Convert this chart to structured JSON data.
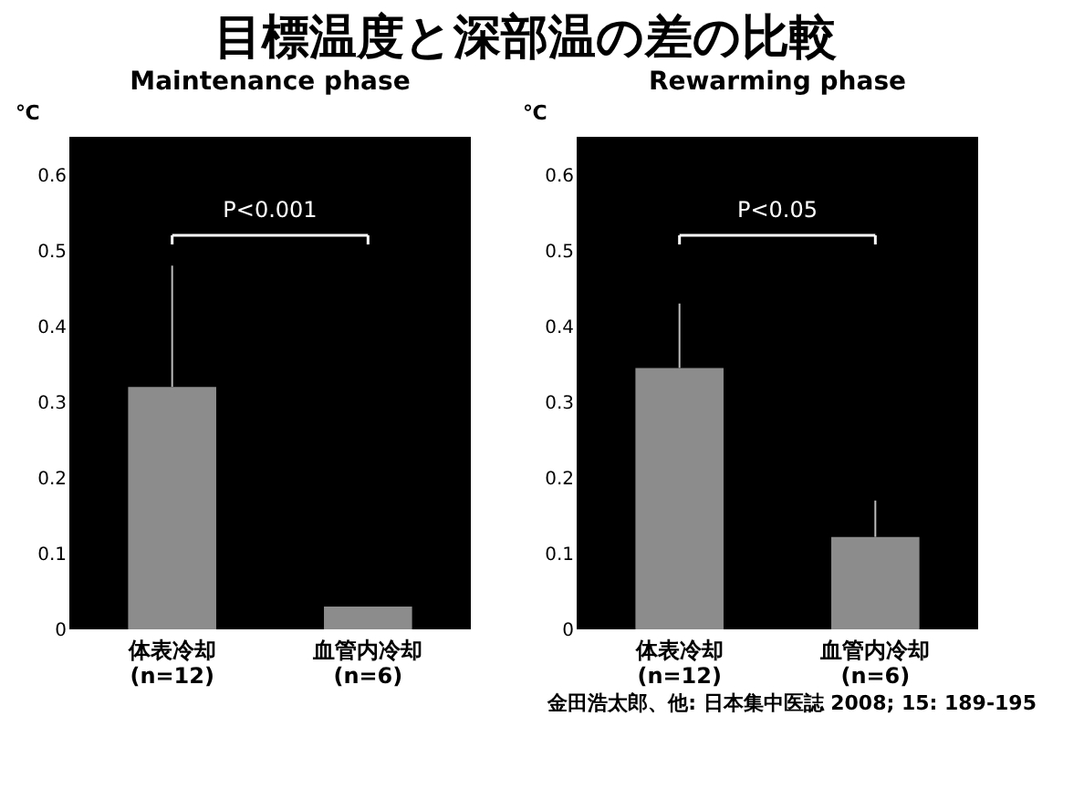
{
  "chart_data": [
    {
      "type": "bar",
      "title": "目標温度と深部温の差の比較",
      "subtitle": "Maintenance phase",
      "ylabel": "℃",
      "categories": [
        "体表冷却\n(n=12)",
        "血管内冷却\n(n=6)"
      ],
      "values": [
        0.32,
        0.03
      ],
      "color": "#8c8c8c",
      "errors": [
        [
          0.32,
          0.48
        ],
        null
      ],
      "ylim": [
        0,
        0.65
      ],
      "yticks": [
        {
          "value": 0,
          "label": "0"
        },
        0.1,
        0.2,
        0.3,
        0.4,
        0.5,
        0.6
      ],
      "grid": false,
      "annotations": [
        "P<0.001"
      ]
    },
    {
      "type": "bar",
      "subtitle": "Rewarming phase",
      "ylabel": "℃",
      "categories": [
        "体表冷却\n(n=12)",
        "血管内冷却\n(n=6)"
      ],
      "values": [
        0.345,
        0.122
      ],
      "color": "#8c8c8c",
      "errors": [
        [
          0.345,
          0.43
        ],
        [
          0.122,
          0.17
        ]
      ],
      "ylim": [
        0,
        0.65
      ],
      "yticks": [
        {
          "value": 0,
          "label": "0"
        },
        0.1,
        0.2,
        0.3,
        0.4,
        0.5,
        0.6
      ],
      "grid": false,
      "annotations": [
        "P<0.05",
        "金田浩太郎、他: 日本集中医誌 2008; 15: 189-195"
      ]
    }
  ]
}
